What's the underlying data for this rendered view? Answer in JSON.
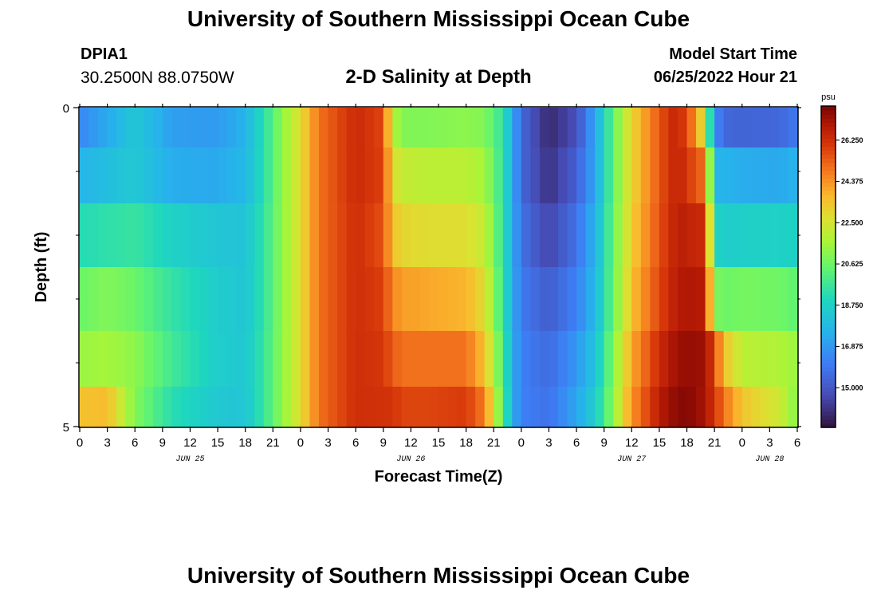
{
  "header": {
    "title": "University of Southern Mississippi Ocean Cube",
    "station_id": "DPIA1",
    "coordinates": "30.2500N  88.0750W",
    "plot_title": "2-D Salinity at Depth",
    "model_start_label": "Model Start Time",
    "model_start_time": "06/25/2022 Hour 21"
  },
  "footer": {
    "title": "University of Southern Mississippi Ocean Cube"
  },
  "chart_data": {
    "type": "heatmap",
    "title": "2-D Salinity at Depth",
    "xlabel": "Forecast Time(Z)",
    "ylabel": "Depth (ft)",
    "x_start_hour_offset": 0,
    "x_hours": [
      0,
      3,
      6,
      9,
      12,
      15,
      18,
      21,
      24,
      27,
      30,
      33,
      36,
      39,
      42,
      45,
      48,
      51,
      54,
      57,
      60,
      63,
      66,
      69,
      72,
      75,
      78
    ],
    "x_tick_labels": [
      "0",
      "3",
      "6",
      "9",
      "12",
      "15",
      "18",
      "21",
      "0",
      "3",
      "6",
      "9",
      "12",
      "15",
      "18",
      "21",
      "0",
      "3",
      "6",
      "9",
      "12",
      "15",
      "18",
      "21",
      "0",
      "3",
      "6"
    ],
    "day_labels": [
      {
        "hour": 12,
        "label": "JUN 25"
      },
      {
        "hour": 36,
        "label": "JUN 26"
      },
      {
        "hour": 60,
        "label": "JUN 27"
      },
      {
        "hour": 75,
        "label": "JUN 28"
      }
    ],
    "ylim": [
      0,
      5
    ],
    "y_tick_labels": [
      "0",
      "5"
    ],
    "y_minor_ticks": [
      1,
      2,
      3,
      4
    ],
    "depth_layers": [
      0.25,
      1.0,
      2.0,
      3.0,
      4.0,
      4.75
    ],
    "colorbar": {
      "unit": "psu",
      "min": 13.2,
      "max": 27.8,
      "tick_values": [
        15.0,
        16.875,
        18.75,
        20.625,
        22.5,
        24.375,
        26.25
      ],
      "tick_labels": [
        "15.000",
        "16.875",
        "18.750",
        "20.625",
        "22.500",
        "24.375",
        "26.250"
      ]
    },
    "salinity_keypoints": [
      {
        "hour": 0,
        "values": [
          16.4,
          17.6,
          19.2,
          20.6,
          21.4,
          23.5
        ]
      },
      {
        "hour": 3,
        "values": [
          17.3,
          18.0,
          19.4,
          21.0,
          21.6,
          23.6
        ]
      },
      {
        "hour": 6,
        "values": [
          18.4,
          18.4,
          19.6,
          20.6,
          21.2,
          21.0
        ]
      },
      {
        "hour": 10,
        "values": [
          17.0,
          17.4,
          18.8,
          19.5,
          19.8,
          19.3
        ]
      },
      {
        "hour": 15,
        "values": [
          16.9,
          17.3,
          18.3,
          18.6,
          18.6,
          18.4
        ]
      },
      {
        "hour": 18,
        "values": [
          17.6,
          17.8,
          18.2,
          18.3,
          18.4,
          18.3
        ]
      },
      {
        "hour": 20,
        "values": [
          19.3,
          19.3,
          19.5,
          19.5,
          19.6,
          19.6
        ]
      },
      {
        "hour": 22,
        "values": [
          21.2,
          21.2,
          21.2,
          21.2,
          21.2,
          21.2
        ]
      },
      {
        "hour": 24,
        "values": [
          22.8,
          22.8,
          22.8,
          22.8,
          22.8,
          22.8
        ]
      },
      {
        "hour": 26,
        "values": [
          25.0,
          25.0,
          25.0,
          25.0,
          25.0,
          25.0
        ]
      },
      {
        "hour": 30,
        "values": [
          26.4,
          26.4,
          26.3,
          26.3,
          26.3,
          26.3
        ]
      },
      {
        "hour": 33,
        "values": [
          25.8,
          25.9,
          25.6,
          25.9,
          26.1,
          26.2
        ]
      },
      {
        "hour": 34,
        "values": [
          22.0,
          22.8,
          23.5,
          24.6,
          25.4,
          26.2
        ]
      },
      {
        "hour": 35,
        "values": [
          21.0,
          22.2,
          23.0,
          24.2,
          25.0,
          25.8
        ]
      },
      {
        "hour": 38,
        "values": [
          21.0,
          22.0,
          22.8,
          24.0,
          25.0,
          25.8
        ]
      },
      {
        "hour": 42,
        "values": [
          21.2,
          22.0,
          22.8,
          23.8,
          25.0,
          26.0
        ]
      },
      {
        "hour": 44,
        "values": [
          21.0,
          21.6,
          22.2,
          22.8,
          23.5,
          24.8
        ]
      },
      {
        "hour": 46,
        "values": [
          19.5,
          19.5,
          19.5,
          19.6,
          20.0,
          20.2
        ]
      },
      {
        "hour": 47,
        "values": [
          17.5,
          17.5,
          17.5,
          17.5,
          17.6,
          17.6
        ]
      },
      {
        "hour": 48,
        "values": [
          15.5,
          15.5,
          15.8,
          16.0,
          16.2,
          16.2
        ]
      },
      {
        "hour": 51,
        "values": [
          13.8,
          14.0,
          14.5,
          15.2,
          15.6,
          15.8
        ]
      },
      {
        "hour": 54,
        "values": [
          14.8,
          15.3,
          15.8,
          16.2,
          16.8,
          17.2
        ]
      },
      {
        "hour": 56,
        "values": [
          17.2,
          17.2,
          17.6,
          17.8,
          18.2,
          18.6
        ]
      },
      {
        "hour": 58,
        "values": [
          20.5,
          20.5,
          20.6,
          20.6,
          21.0,
          21.2
        ]
      },
      {
        "hour": 60,
        "values": [
          23.0,
          23.0,
          23.2,
          23.5,
          24.0,
          24.4
        ]
      },
      {
        "hour": 63,
        "values": [
          25.5,
          25.5,
          25.6,
          25.8,
          26.4,
          26.8
        ]
      },
      {
        "hour": 65,
        "values": [
          26.7,
          26.7,
          26.8,
          26.9,
          27.3,
          27.6
        ]
      },
      {
        "hour": 67,
        "values": [
          24.5,
          25.5,
          26.5,
          27.0,
          27.4,
          27.5
        ]
      },
      {
        "hour": 68,
        "values": [
          22.0,
          25.0,
          26.4,
          26.8,
          27.2,
          27.0
        ]
      },
      {
        "hour": 69,
        "values": [
          16.6,
          17.6,
          19.0,
          21.0,
          25.8,
          26.2
        ]
      },
      {
        "hour": 70,
        "values": [
          15.5,
          17.6,
          18.6,
          20.6,
          23.5,
          25.0
        ]
      },
      {
        "hour": 72,
        "values": [
          15.4,
          17.4,
          18.7,
          20.8,
          22.0,
          23.4
        ]
      },
      {
        "hour": 76,
        "values": [
          15.5,
          17.3,
          18.8,
          20.7,
          21.8,
          22.4
        ]
      },
      {
        "hour": 78,
        "values": [
          16.0,
          17.6,
          18.8,
          20.4,
          21.4,
          21.0
        ]
      }
    ]
  }
}
